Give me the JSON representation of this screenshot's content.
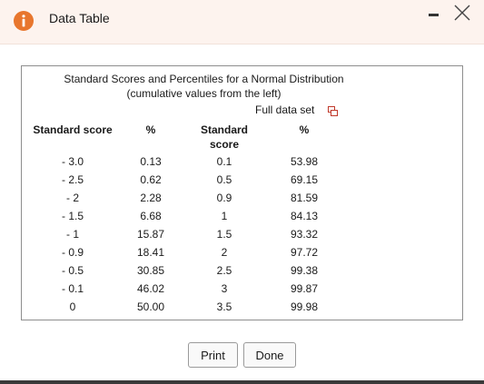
{
  "window": {
    "title": "Data Table",
    "info_icon": "info-icon",
    "minimize_icon": "minimize-icon",
    "close_icon": "close-icon"
  },
  "table": {
    "caption_line1": "Standard Scores and Percentiles for a Normal Distribution",
    "caption_line2": "(cumulative values from the left)",
    "full_data_label": "Full data set",
    "headers": {
      "col1": "Standard score",
      "col2": "%",
      "col3_line1": "Standard",
      "col3_line2": "score",
      "col4": "%"
    },
    "left_rows": [
      {
        "score": "- 3.0",
        "pct": "0.13"
      },
      {
        "score": "- 2.5",
        "pct": "0.62"
      },
      {
        "score": "- 2",
        "pct": "2.28"
      },
      {
        "score": "- 1.5",
        "pct": "6.68"
      },
      {
        "score": "- 1",
        "pct": "15.87"
      },
      {
        "score": "- 0.9",
        "pct": "18.41"
      },
      {
        "score": "- 0.5",
        "pct": "30.85"
      },
      {
        "score": "- 0.1",
        "pct": "46.02"
      },
      {
        "score": "0",
        "pct": "50.00"
      }
    ],
    "right_rows": [
      {
        "score": "0.1",
        "pct": "53.98"
      },
      {
        "score": "0.5",
        "pct": "69.15"
      },
      {
        "score": "0.9",
        "pct": "81.59"
      },
      {
        "score": "1",
        "pct": "84.13"
      },
      {
        "score": "1.5",
        "pct": "93.32"
      },
      {
        "score": "2",
        "pct": "97.72"
      },
      {
        "score": "2.5",
        "pct": "99.38"
      },
      {
        "score": "3",
        "pct": "99.87"
      },
      {
        "score": "3.5",
        "pct": "99.98"
      }
    ]
  },
  "buttons": {
    "print_label": "Print",
    "done_label": "Done"
  },
  "colors": {
    "titlebar_bg": "#fdf3ee",
    "info_icon": "#e8762d"
  }
}
